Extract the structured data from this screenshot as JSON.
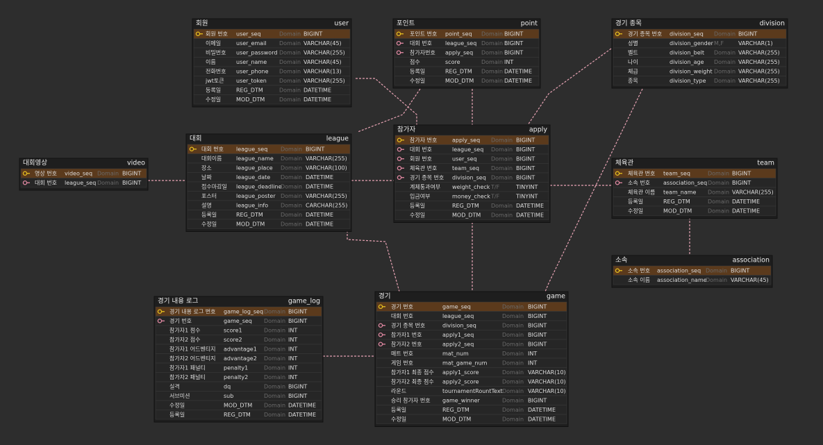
{
  "tables": [
    {
      "title": "회원",
      "name": "user",
      "rows": [
        {
          "key": "pk",
          "logical": "회원 번호",
          "physical": "user_seq",
          "domain": "Domain",
          "type": "BIGINT"
        },
        {
          "key": null,
          "logical": "이메일",
          "physical": "user_email",
          "domain": "Domain",
          "type": "VARCHAR(45)"
        },
        {
          "key": null,
          "logical": "비밀번호",
          "physical": "user_password",
          "domain": "Domain",
          "type": "VARCHAR(255)"
        },
        {
          "key": null,
          "logical": "이름",
          "physical": "user_name",
          "domain": "Domain",
          "type": "VARCHAR(45)"
        },
        {
          "key": null,
          "logical": "전화번호",
          "physical": "user_phone",
          "domain": "Domain",
          "type": "VARCHAR(13)"
        },
        {
          "key": null,
          "logical": "jwt토큰",
          "physical": "user_token",
          "domain": "Domain",
          "type": "VARCHAR(255)"
        },
        {
          "key": null,
          "logical": "등록일",
          "physical": "REG_DTM",
          "domain": "Domain",
          "type": "DATETIME"
        },
        {
          "key": null,
          "logical": "수정일",
          "physical": "MOD_DTM",
          "domain": "Domain",
          "type": "DATETIME"
        }
      ]
    },
    {
      "title": "포인트",
      "name": "point",
      "rows": [
        {
          "key": "pk",
          "logical": "포인트 번호",
          "physical": "point_seq",
          "domain": "Domain",
          "type": "BIGINT"
        },
        {
          "key": "fk",
          "logical": "대회 번호",
          "physical": "league_seq",
          "domain": "Domain",
          "type": "BIGINT"
        },
        {
          "key": "fk",
          "logical": "참가자번호",
          "physical": "apply_seq",
          "domain": "Domain",
          "type": "BIGINT"
        },
        {
          "key": null,
          "logical": "점수",
          "physical": "score",
          "domain": "Domain",
          "type": "INT"
        },
        {
          "key": null,
          "logical": "등록일",
          "physical": "REG_DTM",
          "domain": "Domain",
          "type": "DATETIME"
        },
        {
          "key": null,
          "logical": "수정일",
          "physical": "MOD_DTM",
          "domain": "Domain",
          "type": "DATETIME"
        }
      ]
    },
    {
      "title": "경기 종목",
      "name": "division",
      "rows": [
        {
          "key": "pk",
          "logical": "경기 종목 번호",
          "physical": "division_seq",
          "domain": "Domain",
          "type": "BIGINT"
        },
        {
          "key": null,
          "logical": "성별",
          "physical": "division_gender",
          "domain": "M,F",
          "type": "VARCHAR(1)"
        },
        {
          "key": null,
          "logical": "벨트",
          "physical": "division_belt",
          "domain": "Domain",
          "type": "VARCHAR(255)"
        },
        {
          "key": null,
          "logical": "나이",
          "physical": "division_age",
          "domain": "Domain",
          "type": "VARCHAR(255)"
        },
        {
          "key": null,
          "logical": "체급",
          "physical": "division_weight",
          "domain": "Domain",
          "type": "VARCHAR(255)"
        },
        {
          "key": null,
          "logical": "종목",
          "physical": "division_type",
          "domain": "Domain",
          "type": "VARCHAR(255)"
        }
      ]
    },
    {
      "title": "대회",
      "name": "league",
      "rows": [
        {
          "key": "pk",
          "logical": "대회 번호",
          "physical": "league_seq",
          "domain": "Domain",
          "type": "BIGINT"
        },
        {
          "key": null,
          "logical": "대회이름",
          "physical": "league_name",
          "domain": "Domain",
          "type": "VARCHAR(255)"
        },
        {
          "key": null,
          "logical": "장소",
          "physical": "league_place",
          "domain": "Domain",
          "type": "VARCHAR(100)"
        },
        {
          "key": null,
          "logical": "날짜",
          "physical": "league_date",
          "domain": "Domain",
          "type": "DATETIME"
        },
        {
          "key": null,
          "logical": "접수마감일",
          "physical": "league_deadline",
          "domain": "Domain",
          "type": "DATETIME"
        },
        {
          "key": null,
          "logical": "포스터",
          "physical": "league_poster",
          "domain": "Domain",
          "type": "VARCHAR(255)"
        },
        {
          "key": null,
          "logical": "설명",
          "physical": "league_info",
          "domain": "Domain",
          "type": "CARCHAR(255)"
        },
        {
          "key": null,
          "logical": "등록일",
          "physical": "REG_DTM",
          "domain": "Domain",
          "type": "DATETIME"
        },
        {
          "key": null,
          "logical": "수정일",
          "physical": "MOD_DTM",
          "domain": "Domain",
          "type": "DATETIME"
        }
      ]
    },
    {
      "title": "대회영상",
      "name": "video",
      "rows": [
        {
          "key": "pk",
          "logical": "영상 번호",
          "physical": "video_seq",
          "domain": "Domain",
          "type": "BIGINT"
        },
        {
          "key": "fk",
          "logical": "대회 번호",
          "physical": "league_seq",
          "domain": "Domain",
          "type": "BIGINT"
        }
      ]
    },
    {
      "title": "참가자",
      "name": "apply",
      "rows": [
        {
          "key": "pk",
          "logical": "참가자 번호",
          "physical": "apply_seq",
          "domain": "Domain",
          "type": "BIGINT"
        },
        {
          "key": "fk",
          "logical": "대회 번호",
          "physical": "league_seq",
          "domain": "Domain",
          "type": "BIGINT"
        },
        {
          "key": "fk",
          "logical": "회원 번호",
          "physical": "user_seq",
          "domain": "Domain",
          "type": "BIGINT"
        },
        {
          "key": "fk",
          "logical": "체육관 번호",
          "physical": "team_seq",
          "domain": "Domain",
          "type": "BIGINT"
        },
        {
          "key": "fk",
          "logical": "경기 종목 번호",
          "physical": "division_seq",
          "domain": "Domain",
          "type": "BIGINT"
        },
        {
          "key": null,
          "logical": "계체통과여부",
          "physical": "weight_check",
          "domain": "T/F",
          "type": "TINYINT"
        },
        {
          "key": null,
          "logical": "입금여부",
          "physical": "money_check",
          "domain": "T/F",
          "type": "TINYINT"
        },
        {
          "key": null,
          "logical": "등록일",
          "physical": "REG_DTM",
          "domain": "Domain",
          "type": "DATETIME"
        },
        {
          "key": null,
          "logical": "수정일",
          "physical": "MOD_DTM",
          "domain": "Domain",
          "type": "DATETIME"
        }
      ]
    },
    {
      "title": "체육관",
      "name": "team",
      "rows": [
        {
          "key": "pk",
          "logical": "체육관 번호",
          "physical": "team_seq",
          "domain": "Domain",
          "type": "BIGINT"
        },
        {
          "key": "fk",
          "logical": "소속 번호",
          "physical": "association_seq",
          "domain": "Domain",
          "type": "BIGINT"
        },
        {
          "key": null,
          "logical": "체육관 이름",
          "physical": "team_name",
          "domain": "Domain",
          "type": "VARCHAR(255)"
        },
        {
          "key": null,
          "logical": "등록일",
          "physical": "REG_DTM",
          "domain": "Domain",
          "type": "DATETIME"
        },
        {
          "key": null,
          "logical": "수정일",
          "physical": "MOD_DTM",
          "domain": "Domain",
          "type": "DATETIME"
        }
      ]
    },
    {
      "title": "소속",
      "name": "association",
      "rows": [
        {
          "key": "pk",
          "logical": "소속 번호",
          "physical": "association_seq",
          "domain": "Domain",
          "type": "BIGINT"
        },
        {
          "key": null,
          "logical": "소속 이름",
          "physical": "association_name",
          "domain": "Domain",
          "type": "VARCHAR(45)"
        }
      ]
    },
    {
      "title": "경기 내용 로그",
      "name": "game_log",
      "rows": [
        {
          "key": "pk",
          "logical": "경기 내용 로그 번호",
          "physical": "game_log_seq",
          "domain": "Domain",
          "type": "BIGINT"
        },
        {
          "key": "fk",
          "logical": "경기 번호",
          "physical": "game_seq",
          "domain": "Domain",
          "type": "BIGINT"
        },
        {
          "key": null,
          "logical": "참가자1 점수",
          "physical": "score1",
          "domain": "Domain",
          "type": "INT"
        },
        {
          "key": null,
          "logical": "참가자2 점수",
          "physical": "score2",
          "domain": "Domain",
          "type": "INT"
        },
        {
          "key": null,
          "logical": "참가자1 어드벤티지",
          "physical": "advantage1",
          "domain": "Domain",
          "type": "INT"
        },
        {
          "key": null,
          "logical": "참가자2 어드벤티지",
          "physical": "advantage2",
          "domain": "Domain",
          "type": "INT"
        },
        {
          "key": null,
          "logical": "참가자1 패널티",
          "physical": "penalty1",
          "domain": "Domain",
          "type": "INT"
        },
        {
          "key": null,
          "logical": "참가자2 패널티",
          "physical": "penalty2",
          "domain": "Domain",
          "type": "INT"
        },
        {
          "key": null,
          "logical": "실격",
          "physical": "dq",
          "domain": "Domain",
          "type": "BIGINT"
        },
        {
          "key": null,
          "logical": "서브미션",
          "physical": "sub",
          "domain": "Domain",
          "type": "BIGINT"
        },
        {
          "key": null,
          "logical": "수정일",
          "physical": "MOD_DTM",
          "domain": "Domain",
          "type": "DATETIME"
        },
        {
          "key": null,
          "logical": "등록일",
          "physical": "REG_DTM",
          "domain": "Domain",
          "type": "DATETIME"
        }
      ]
    },
    {
      "title": "경기",
      "name": "game",
      "rows": [
        {
          "key": "pk",
          "logical": "경기 번호",
          "physical": "game_seq",
          "domain": "Domain",
          "type": "BIGINT"
        },
        {
          "key": null,
          "logical": "대회 번호",
          "physical": "league_seq",
          "domain": "Domain",
          "type": "BIGINT"
        },
        {
          "key": "fk",
          "logical": "경기 종목 번호",
          "physical": "division_seq",
          "domain": "Domain",
          "type": "BIGINT"
        },
        {
          "key": "fk",
          "logical": "참가자1 번호",
          "physical": "apply1_seq",
          "domain": "Domain",
          "type": "BIGINT"
        },
        {
          "key": "fk",
          "logical": "참가자2 번호",
          "physical": "apply2_seq",
          "domain": "Domain",
          "type": "BIGINT"
        },
        {
          "key": null,
          "logical": "매트 번호",
          "physical": "mat_num",
          "domain": "Domain",
          "type": "INT"
        },
        {
          "key": null,
          "logical": "게임 번호",
          "physical": "mat_game_num",
          "domain": "Domain",
          "type": "INT"
        },
        {
          "key": null,
          "logical": "참가자1 최종 점수",
          "physical": "apply1_score",
          "domain": "Domain",
          "type": "VARCHAR(10)"
        },
        {
          "key": null,
          "logical": "참가자2 최종 점수",
          "physical": "apply2_score",
          "domain": "Domain",
          "type": "VARCHAR(10)"
        },
        {
          "key": null,
          "logical": "라운드",
          "physical": "tournamentRountText",
          "domain": "Domain",
          "type": "VARCHAR(10)"
        },
        {
          "key": null,
          "logical": "승리 참가자 번호",
          "physical": "game_winner",
          "domain": "Domain",
          "type": "BIGINT"
        },
        {
          "key": null,
          "logical": "등록일",
          "physical": "REG_DTM",
          "domain": "Domain",
          "type": "DATETIME"
        },
        {
          "key": null,
          "logical": "수정일",
          "physical": "MOD_DTM",
          "domain": "Domain",
          "type": "DATETIME"
        }
      ]
    }
  ]
}
